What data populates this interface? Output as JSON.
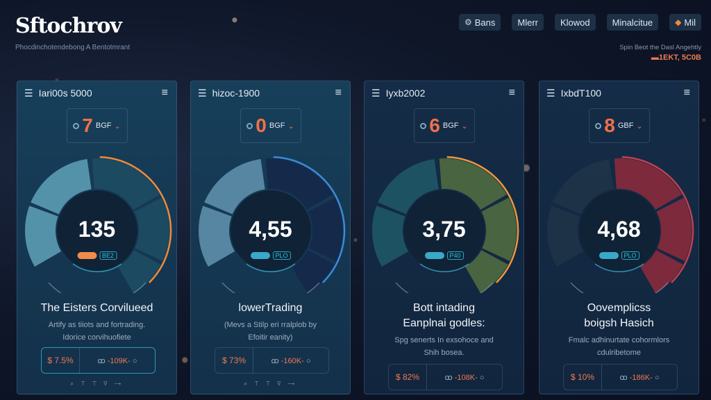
{
  "header": {
    "logo": "Sftochrov",
    "tagline": "Phocdinchotendebong A Bentotmrant",
    "nav": [
      {
        "label": "Bans",
        "icon": "gear-icon",
        "icon_glyph": "⚙"
      },
      {
        "label": "Mlerr"
      },
      {
        "label": "Klowod"
      },
      {
        "label": "Minalcitue"
      },
      {
        "label": "Mil",
        "icon": "fox-icon",
        "icon_glyph": "◆"
      }
    ],
    "promo_text": "Spin Beot the Dasl Angehtly",
    "promo_value": "1EKT, 5C0B"
  },
  "colors": {
    "accent": "#f07048",
    "cyan": "#3cc0e0"
  },
  "cards": [
    {
      "title_top": "Iari00s 5000",
      "select_value": "7",
      "select_unit": "BGF",
      "gauge_value": "135",
      "pill_label": "BE2",
      "pill_color": "#f08a4a",
      "seg_left": "#5b9cb2",
      "seg_right": "#1d4c62",
      "arc": "#f08a3a",
      "title": "The Eisters Corvilueed",
      "sub1": "Artify as tiiots and fortrading.",
      "sub2": "Idorice corvihuofiete",
      "pct": "$ 7.5%",
      "range": "-109K-",
      "range_icon": "ꝏ",
      "tools": "⌕ ⊤ ⊤ ⊽ ⟶"
    },
    {
      "title_top": "hizoc-1900",
      "select_value": "0",
      "select_unit": "BGF",
      "gauge_value": "4,55",
      "pill_label": "PLO",
      "pill_color": "#3aa8c8",
      "seg_left": "#5d8faa",
      "seg_right": "#15294a",
      "arc": "#3a8ad8",
      "title": "lowerTrading",
      "sub1": "(Mevs a Stilp eri rralplob by",
      "sub2": "Efoitir eanity)",
      "pct": "$ 73%",
      "range": "-160K-",
      "range_icon": "ꝏ",
      "tools": "⌕ ⊤ ⊤ ⊽ ⟶"
    },
    {
      "title_top": "Iyxb2002",
      "select_value": "6",
      "select_unit": "BGF",
      "gauge_value": "3,75",
      "pill_label": "P40",
      "pill_color": "#3aa8c8",
      "seg_left": "#1f5666",
      "seg_right": "#4f6a40",
      "arc": "#f0963a",
      "title": "Bott intading",
      "title2": "Eanplnai godles:",
      "sub1": "Spg senerts In exsohoce and",
      "sub2": "Shih bosea.",
      "pct": "$ 82%",
      "range": "-108K-",
      "range_icon": "ꝏ"
    },
    {
      "title_top": "IxbdT100",
      "select_value": "8",
      "select_unit": "GBF",
      "gauge_value": "4,68",
      "pill_label": "PLO",
      "pill_color": "#3aa8c8",
      "seg_left": "#1f3348",
      "seg_right": "#8a2a3c",
      "arc": "#c04050",
      "title": "Oovemplicss",
      "title2": "boigsh Hasich",
      "sub1": "Fmalc adhinurtate cohormlors",
      "sub2": "cdulribetome",
      "pct": "$ 10%",
      "range": "-186K-",
      "range_icon": "ꝏ"
    }
  ]
}
